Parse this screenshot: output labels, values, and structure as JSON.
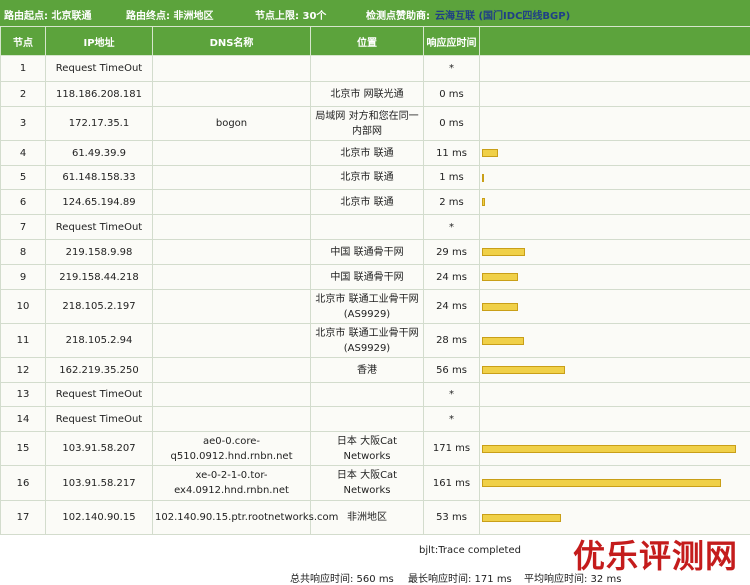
{
  "header": {
    "start": "路由起点: 北京联通",
    "end": "路由终点: 非洲地区",
    "limit": "节点上限: 30个",
    "sponsor_label": "检测点赞助商:",
    "sponsor": "云海互联 (国门IDC四线BGP)"
  },
  "columns": [
    "节点",
    "IP地址",
    "DNS名称",
    "位置",
    "响应应时间"
  ],
  "rows": [
    {
      "hop": "1",
      "ip": "Request TimeOut",
      "dns": "",
      "loc": "",
      "time": "*",
      "ms": 0
    },
    {
      "hop": "2",
      "ip": "118.186.208.181",
      "dns": "",
      "loc": "北京市 网联光通",
      "time": "0 ms",
      "ms": 0
    },
    {
      "hop": "3",
      "ip": "172.17.35.1",
      "dns": "bogon",
      "loc": "局域网 对方和您在同一内部网",
      "time": "0 ms",
      "ms": 0
    },
    {
      "hop": "4",
      "ip": "61.49.39.9",
      "dns": "",
      "loc": "北京市 联通",
      "time": "11 ms",
      "ms": 11
    },
    {
      "hop": "5",
      "ip": "61.148.158.33",
      "dns": "",
      "loc": "北京市 联通",
      "time": "1 ms",
      "ms": 1
    },
    {
      "hop": "6",
      "ip": "124.65.194.89",
      "dns": "",
      "loc": "北京市 联通",
      "time": "2 ms",
      "ms": 2
    },
    {
      "hop": "7",
      "ip": "Request TimeOut",
      "dns": "",
      "loc": "",
      "time": "*",
      "ms": 0
    },
    {
      "hop": "8",
      "ip": "219.158.9.98",
      "dns": "",
      "loc": "中国 联通骨干网",
      "time": "29 ms",
      "ms": 29
    },
    {
      "hop": "9",
      "ip": "219.158.44.218",
      "dns": "",
      "loc": "中国 联通骨干网",
      "time": "24 ms",
      "ms": 24
    },
    {
      "hop": "10",
      "ip": "218.105.2.197",
      "dns": "",
      "loc": "北京市 联通工业骨干网 (AS9929)",
      "time": "24 ms",
      "ms": 24
    },
    {
      "hop": "11",
      "ip": "218.105.2.94",
      "dns": "",
      "loc": "北京市 联通工业骨干网 (AS9929)",
      "time": "28 ms",
      "ms": 28
    },
    {
      "hop": "12",
      "ip": "162.219.35.250",
      "dns": "",
      "loc": "香港",
      "time": "56 ms",
      "ms": 56
    },
    {
      "hop": "13",
      "ip": "Request TimeOut",
      "dns": "",
      "loc": "",
      "time": "*",
      "ms": 0
    },
    {
      "hop": "14",
      "ip": "Request TimeOut",
      "dns": "",
      "loc": "",
      "time": "*",
      "ms": 0
    },
    {
      "hop": "15",
      "ip": "103.91.58.207",
      "dns": "ae0-0.core-q510.0912.hnd.rnbn.net",
      "loc": "日本 大阪Cat Networks",
      "time": "171 ms",
      "ms": 171
    },
    {
      "hop": "16",
      "ip": "103.91.58.217",
      "dns": "xe-0-2-1-0.tor-ex4.0912.hnd.rnbn.net",
      "loc": "日本 大阪Cat Networks",
      "time": "161 ms",
      "ms": 161
    },
    {
      "hop": "17",
      "ip": "102.140.90.15",
      "dns": "102.140.90.15.ptr.rootnetworks.com",
      "loc": "非洲地区",
      "time": "53 ms",
      "ms": 53
    }
  ],
  "trace_status": "bjlt:Trace completed",
  "summary": {
    "total": "总共响应时间: 560 ms",
    "max": "最长响应时间: 171 ms",
    "avg": "平均响应时间: 32 ms"
  },
  "watermark_logo": "优乐评测网",
  "colors": {
    "header_bg": "#5ca33c",
    "bar_fill": "#f0d048",
    "sponsor_link": "#1f3f86",
    "logo": "#c41c1c"
  }
}
